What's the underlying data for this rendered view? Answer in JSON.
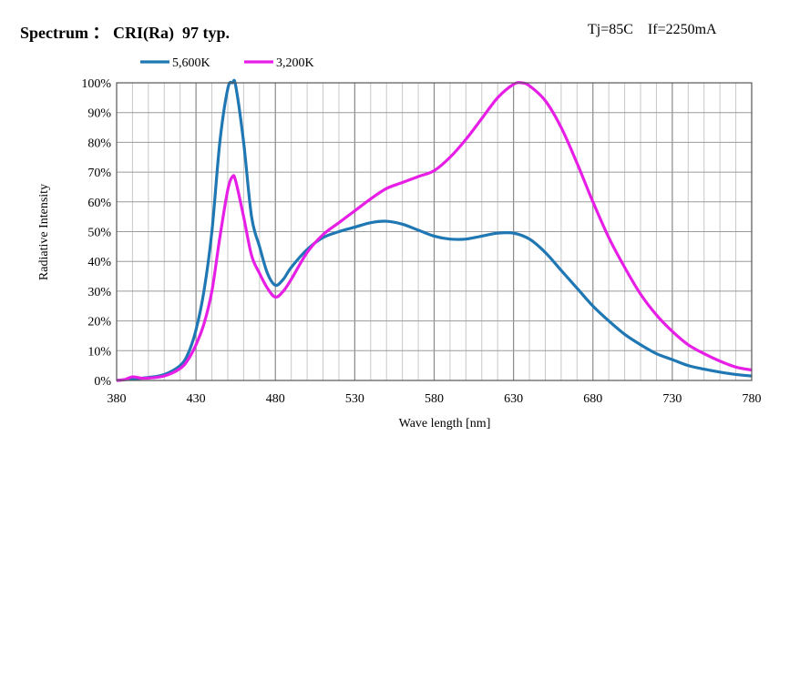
{
  "header": {
    "title": "Spectrum ： CRI(Ra)  97 typ.",
    "conditions": "Tj=85C    If=2250mA"
  },
  "chart_data": {
    "type": "line",
    "title": "Spectrum ： CRI(Ra)  97 typ.",
    "xlabel": "Wave length [nm]",
    "ylabel": "Radiative Intensity",
    "xlim": [
      380,
      780
    ],
    "ylim": [
      0,
      100
    ],
    "x_ticks": [
      "380",
      "430",
      "480",
      "530",
      "580",
      "630",
      "680",
      "730",
      "780"
    ],
    "y_ticks": [
      "0%",
      "10%",
      "20%",
      "30%",
      "40%",
      "50%",
      "60%",
      "70%",
      "80%",
      "90%",
      "100%"
    ],
    "grid": true,
    "legend_position": "top-left",
    "series": [
      {
        "name": "5,600K",
        "color": "#1f77b4",
        "x": [
          380,
          390,
          400,
          410,
          420,
          425,
          430,
          435,
          440,
          445,
          450,
          453,
          455,
          460,
          465,
          470,
          475,
          480,
          485,
          490,
          500,
          510,
          520,
          530,
          540,
          550,
          560,
          570,
          580,
          590,
          600,
          610,
          620,
          630,
          640,
          650,
          660,
          670,
          680,
          690,
          700,
          710,
          720,
          730,
          740,
          750,
          760,
          770,
          780
        ],
        "y": [
          0,
          0.5,
          1,
          2,
          5,
          9,
          17,
          30,
          50,
          80,
          98,
          100,
          99,
          80,
          55,
          45,
          36,
          32,
          34,
          38,
          44,
          48,
          50,
          51.5,
          53,
          53.5,
          52.5,
          50.5,
          48.5,
          47.5,
          47.5,
          48.5,
          49.5,
          49.5,
          47.5,
          43,
          37,
          31,
          25,
          20,
          15.5,
          12,
          9,
          7,
          5,
          3.8,
          2.8,
          2,
          1.5
        ]
      },
      {
        "name": "3,200K",
        "color": "#e61ee6",
        "x": [
          380,
          385,
          390,
          395,
          400,
          410,
          420,
          425,
          430,
          435,
          440,
          445,
          450,
          453,
          455,
          460,
          465,
          470,
          475,
          480,
          485,
          490,
          500,
          510,
          520,
          530,
          540,
          550,
          560,
          570,
          580,
          590,
          600,
          610,
          620,
          630,
          635,
          640,
          650,
          660,
          670,
          680,
          690,
          700,
          710,
          720,
          730,
          740,
          750,
          760,
          770,
          780
        ],
        "y": [
          0,
          0.3,
          1.2,
          0.8,
          0.8,
          1.5,
          4,
          7,
          12,
          19,
          30,
          48,
          64,
          68.5,
          67,
          55,
          42,
          36,
          31,
          28,
          30,
          34,
          43,
          49,
          53,
          57,
          61,
          64.5,
          66.5,
          68.5,
          70.5,
          75,
          81,
          88,
          95,
          99.5,
          100,
          99,
          94,
          85,
          73,
          60,
          48,
          38,
          29,
          22,
          16.5,
          12,
          9,
          6.5,
          4.5,
          3.5
        ]
      }
    ]
  }
}
